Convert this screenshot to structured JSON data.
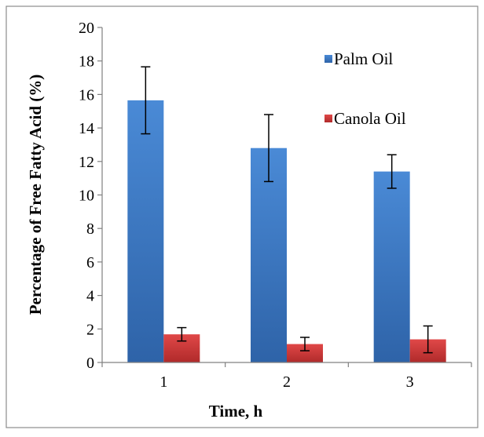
{
  "chart_data": {
    "type": "bar",
    "categories": [
      "1",
      "2",
      "3"
    ],
    "series": [
      {
        "name": "Palm Oil",
        "values": [
          15.65,
          12.8,
          11.4
        ],
        "errors": [
          2.0,
          2.0,
          1.0
        ]
      },
      {
        "name": "Canola Oil",
        "values": [
          1.68,
          1.1,
          1.38
        ],
        "errors": [
          0.4,
          0.4,
          0.8
        ]
      }
    ],
    "title": "",
    "xlabel": "Time, h",
    "ylabel": "Percentage of Free Fatty Acid (%)",
    "ylim": [
      0,
      20
    ],
    "yticks": [
      "0",
      "2",
      "4",
      "6",
      "8",
      "10",
      "12",
      "14",
      "16",
      "18",
      "20"
    ],
    "grid": false,
    "legend_position": "top-right"
  },
  "colors": {
    "palm_oil": "#3F7CC8",
    "palm_oil_dark": "#2B5C9E",
    "canola_oil": "#D23B3B",
    "canola_oil_dark": "#A62626"
  }
}
